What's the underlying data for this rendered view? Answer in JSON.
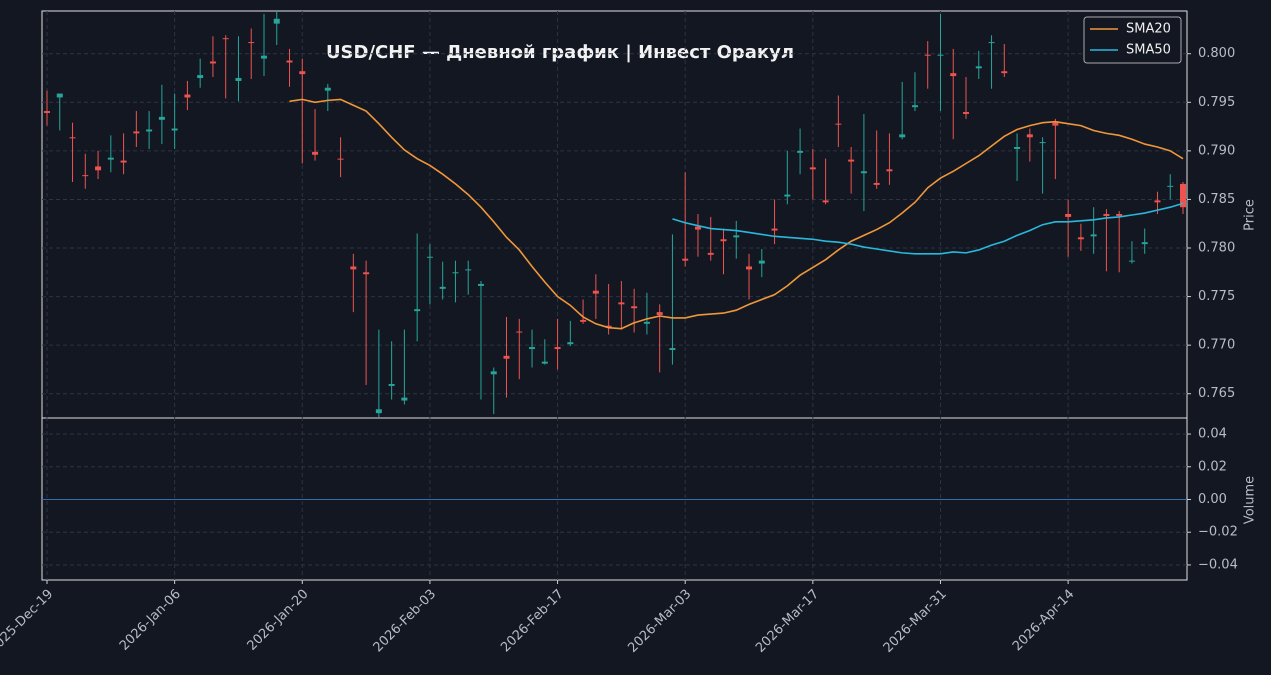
{
  "chart_data": {
    "type": "candlestick",
    "title": "USD/CHF  —  Дневной график  |  Инвест Оракул",
    "ylabel": "Price",
    "categories": [
      "2025-Dec-19",
      null,
      null,
      null,
      null,
      null,
      null,
      null,
      null,
      null,
      "2026-Jan-06",
      null,
      null,
      null,
      null,
      null,
      null,
      null,
      null,
      null,
      "2026-Jan-20",
      null,
      null,
      null,
      null,
      null,
      null,
      null,
      null,
      null,
      "2026-Feb-03",
      null,
      null,
      null,
      null,
      null,
      null,
      null,
      null,
      null,
      "2026-Feb-17",
      null,
      null,
      null,
      null,
      null,
      null,
      null,
      null,
      null,
      "2026-Mar-03",
      null,
      null,
      null,
      null,
      null,
      null,
      null,
      null,
      null,
      "2026-Mar-17",
      null,
      null,
      null,
      null,
      null,
      null,
      null,
      null,
      null,
      "2026-Mar-31",
      null,
      null,
      null,
      null,
      null,
      null,
      null,
      null,
      null,
      "2026-Apr-14",
      null,
      null,
      null,
      null,
      null,
      null,
      null,
      null,
      null
    ],
    "open": [
      0.7941,
      0.7955,
      0.7914,
      0.7875,
      0.7884,
      0.7891,
      0.789,
      0.792,
      0.792,
      0.7932,
      0.7921,
      0.7958,
      0.7975,
      0.7992,
      0.8016,
      0.7972,
      0.8012,
      0.7995,
      0.8031,
      0.7993,
      0.7982,
      0.7899,
      0.7962,
      0.7892,
      0.7781,
      0.7775,
      0.763,
      0.7658,
      0.7643,
      0.7735,
      0.779,
      0.7758,
      0.7774,
      0.7777,
      0.7761,
      0.767,
      0.7689,
      0.7714,
      0.7696,
      0.7681,
      0.7698,
      0.7701,
      0.7726,
      0.7756,
      0.772,
      0.7744,
      0.774,
      0.7722,
      0.7734,
      0.7695,
      0.7789,
      0.7822,
      0.7795,
      0.7809,
      0.7811,
      0.7781,
      0.7784,
      0.782,
      0.7853,
      0.7898,
      0.7883,
      0.7849,
      0.7928,
      0.7891,
      0.7877,
      0.7867,
      0.7881,
      0.7914,
      0.7945,
      0.7999,
      0.7998,
      0.798,
      0.794,
      0.7985,
      0.8011,
      0.7982,
      0.7902,
      0.7917,
      0.7908,
      0.7929,
      0.7835,
      0.7811,
      0.7812,
      0.7835,
      0.7835,
      0.7786,
      0.7804,
      0.7849,
      0.7863,
      0.7866
    ],
    "high": [
      0.7962,
      0.7959,
      0.7929,
      0.7897,
      0.79,
      0.7916,
      0.7918,
      0.7941,
      0.7941,
      0.7968,
      0.7959,
      0.7972,
      0.7995,
      0.8018,
      0.8019,
      0.8018,
      0.8026,
      0.8041,
      0.8044,
      0.8005,
      0.7995,
      0.7943,
      0.7969,
      0.7914,
      0.7794,
      0.7787,
      0.7716,
      0.7704,
      0.7716,
      0.7815,
      0.7804,
      0.7786,
      0.7787,
      0.7787,
      0.7766,
      0.7677,
      0.7729,
      0.7727,
      0.7716,
      0.7706,
      0.7727,
      0.7725,
      0.7747,
      0.7773,
      0.7763,
      0.7766,
      0.7758,
      0.7754,
      0.7742,
      0.7814,
      0.7878,
      0.7835,
      0.7832,
      0.782,
      0.7828,
      0.7794,
      0.7799,
      0.785,
      0.79,
      0.7923,
      0.7902,
      0.7892,
      0.7957,
      0.7904,
      0.7938,
      0.7921,
      0.7918,
      0.7971,
      0.7981,
      0.8013,
      0.8041,
      0.8005,
      0.7976,
      0.8003,
      0.8019,
      0.801,
      0.7918,
      0.7923,
      0.7914,
      0.7933,
      0.785,
      0.7825,
      0.7842,
      0.784,
      0.7838,
      0.7807,
      0.782,
      0.7858,
      0.7876,
      0.7868
    ],
    "low": [
      0.7926,
      0.7921,
      0.7868,
      0.7861,
      0.7871,
      0.7878,
      0.7876,
      0.7904,
      0.7902,
      0.7907,
      0.7902,
      0.7942,
      0.7965,
      0.7976,
      0.7954,
      0.7951,
      0.7974,
      0.7977,
      0.8009,
      0.7966,
      0.7887,
      0.789,
      0.7941,
      0.7873,
      0.7734,
      0.7659,
      0.7626,
      0.7644,
      0.7639,
      0.7704,
      0.7742,
      0.7747,
      0.7744,
      0.7752,
      0.7644,
      0.7629,
      0.7646,
      0.7665,
      0.7677,
      0.768,
      0.7675,
      0.7699,
      0.7722,
      0.7727,
      0.7711,
      0.7716,
      0.7713,
      0.7711,
      0.7672,
      0.768,
      0.7781,
      0.7791,
      0.7787,
      0.7773,
      0.7789,
      0.7747,
      0.777,
      0.7804,
      0.7845,
      0.7876,
      0.785,
      0.7845,
      0.7904,
      0.7856,
      0.7838,
      0.7861,
      0.7865,
      0.7912,
      0.7941,
      0.7964,
      0.7941,
      0.7912,
      0.7933,
      0.7974,
      0.7964,
      0.7976,
      0.7869,
      0.7889,
      0.7856,
      0.7871,
      0.7791,
      0.7797,
      0.7794,
      0.7776,
      0.7775,
      0.7784,
      0.7794,
      0.7835,
      0.785,
      0.7835
    ],
    "close": [
      0.7939,
      0.7959,
      0.7913,
      0.7874,
      0.788,
      0.7893,
      0.7888,
      0.7918,
      0.7922,
      0.7935,
      0.7923,
      0.7955,
      0.7978,
      0.799,
      0.8015,
      0.7975,
      0.8011,
      0.7998,
      0.8036,
      0.7991,
      0.7979,
      0.7896,
      0.7965,
      0.7891,
      0.7778,
      0.7773,
      0.7634,
      0.766,
      0.7646,
      0.7737,
      0.7791,
      0.776,
      0.7775,
      0.7778,
      0.7763,
      0.7673,
      0.7686,
      0.7713,
      0.7698,
      0.7683,
      0.7696,
      0.7703,
      0.7724,
      0.7753,
      0.7718,
      0.7742,
      0.7738,
      0.7724,
      0.7731,
      0.7697,
      0.7787,
      0.7819,
      0.7793,
      0.7807,
      0.7813,
      0.7778,
      0.7787,
      0.7818,
      0.7855,
      0.79,
      0.7881,
      0.7847,
      0.7927,
      0.7889,
      0.7879,
      0.7865,
      0.7879,
      0.7917,
      0.7947,
      0.7998,
      0.7999,
      0.7977,
      0.7938,
      0.7987,
      0.8012,
      0.798,
      0.7904,
      0.7914,
      0.7909,
      0.7926,
      0.7832,
      0.7809,
      0.7814,
      0.7833,
      0.7833,
      0.7787,
      0.7806,
      0.7847,
      0.7864,
      0.7842
    ],
    "up_color": "#26a69a",
    "down_color": "#ef5350",
    "series": [
      {
        "name": "SMA20",
        "color": "#f0973a",
        "values": [
          null,
          null,
          null,
          null,
          null,
          null,
          null,
          null,
          null,
          null,
          null,
          null,
          null,
          null,
          null,
          null,
          null,
          null,
          null,
          0.7951,
          0.7953,
          0.795,
          0.7952,
          0.7953,
          0.7947,
          0.7941,
          0.7928,
          0.7914,
          0.7901,
          0.7892,
          0.7885,
          0.7876,
          0.7866,
          0.7855,
          0.7842,
          0.7827,
          0.7811,
          0.7798,
          0.7781,
          0.7765,
          0.775,
          0.7741,
          0.7729,
          0.7722,
          0.7718,
          0.7717,
          0.7723,
          0.7727,
          0.773,
          0.7728,
          0.7728,
          0.7731,
          0.7732,
          0.7733,
          0.7736,
          0.7742,
          0.7747,
          0.7752,
          0.7761,
          0.7772,
          0.778,
          0.7788,
          0.7798,
          0.7807,
          0.7813,
          0.7819,
          0.7826,
          0.7836,
          0.7847,
          0.7862,
          0.7872,
          0.7879,
          0.7887,
          0.7895,
          0.7905,
          0.7915,
          0.7922,
          0.7926,
          0.7929,
          0.793,
          0.7928,
          0.7926,
          0.7921,
          0.7918,
          0.7916,
          0.7912,
          0.7907,
          0.7904,
          0.79,
          0.7892
        ]
      },
      {
        "name": "SMA50",
        "color": "#29b8dc",
        "values": [
          null,
          null,
          null,
          null,
          null,
          null,
          null,
          null,
          null,
          null,
          null,
          null,
          null,
          null,
          null,
          null,
          null,
          null,
          null,
          null,
          null,
          null,
          null,
          null,
          null,
          null,
          null,
          null,
          null,
          null,
          null,
          null,
          null,
          null,
          null,
          null,
          null,
          null,
          null,
          null,
          null,
          null,
          null,
          null,
          null,
          null,
          null,
          null,
          null,
          0.783,
          0.7826,
          0.7823,
          0.782,
          0.7819,
          0.7818,
          0.7816,
          0.7814,
          0.7812,
          0.7811,
          0.781,
          0.7809,
          0.7807,
          0.7806,
          0.7804,
          0.7801,
          0.7799,
          0.7797,
          0.7795,
          0.7794,
          0.7794,
          0.7794,
          0.7796,
          0.7795,
          0.7798,
          0.7803,
          0.7807,
          0.7813,
          0.7818,
          0.7824,
          0.7827,
          0.7827,
          0.7828,
          0.7829,
          0.7831,
          0.7832,
          0.7834,
          0.7836,
          0.7839,
          0.7842,
          0.7846
        ]
      }
    ],
    "ylim": [
      0.7625,
      0.8044
    ],
    "yticks": [
      0.765,
      {
        "value": 0.77,
        "label": "0.770"
      },
      0.775,
      {
        "value": 0.78,
        "label": "0.780"
      },
      0.785,
      {
        "value": 0.79,
        "label": "0.790"
      },
      0.795,
      {
        "value": 0.8,
        "label": "0.800"
      }
    ],
    "grid": true,
    "legend": "upper right",
    "volume_panel": {
      "ylabel": "Volume",
      "ylim": [
        -0.0492,
        0.0498
      ],
      "yticks": [
        {
          "value": -0.04,
          "label": "−0.04"
        },
        {
          "value": -0.02,
          "label": "−0.02"
        },
        {
          "value": 0,
          "label": "0.00"
        },
        0.02,
        0.04
      ]
    }
  }
}
